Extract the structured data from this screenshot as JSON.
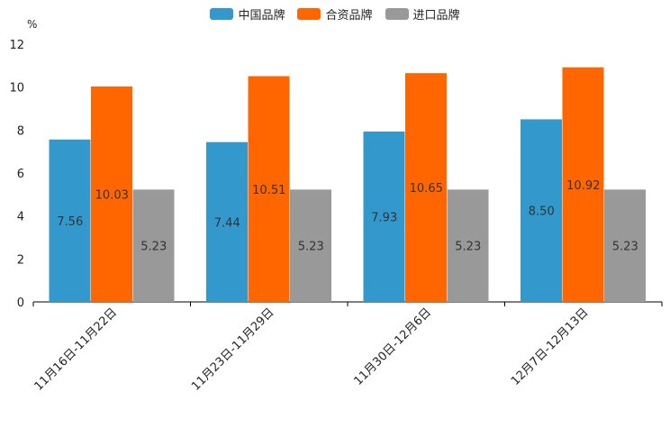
{
  "chart_data": {
    "type": "bar",
    "unit": "%",
    "categories": [
      "11月16日-11月22日",
      "11月23日-11月29日",
      "11月30日-12月6日",
      "12月7日-12月13日"
    ],
    "series": [
      {
        "name": "中国品牌",
        "values": [
          7.56,
          7.44,
          7.93,
          8.5
        ],
        "color": "#3399cc"
      },
      {
        "name": "合资品牌",
        "values": [
          10.03,
          10.51,
          10.65,
          10.92
        ],
        "color": "#ff6600"
      },
      {
        "name": "进口品牌",
        "values": [
          5.23,
          5.23,
          5.23,
          5.23
        ],
        "color": "#999999"
      }
    ],
    "ylim": [
      0,
      12
    ],
    "yticks": [
      0,
      2,
      4,
      6,
      8,
      10,
      12
    ],
    "legend_position": "top-center"
  }
}
